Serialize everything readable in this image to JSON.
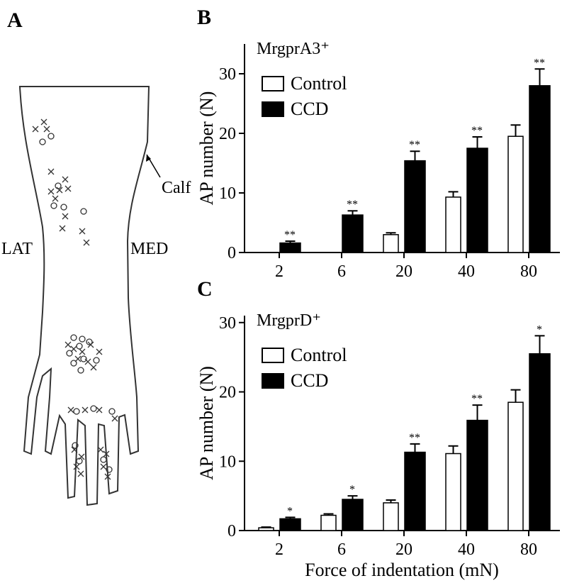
{
  "diagram": {
    "panel": "A",
    "labels": [
      "Calf",
      "LAT",
      "MED"
    ]
  },
  "chart_data": [
    {
      "type": "bar",
      "panel": "B",
      "title": "MrgprA3⁺",
      "ylabel": "AP number (N)",
      "categories": [
        "2",
        "6",
        "20",
        "40",
        "80"
      ],
      "series": [
        {
          "name": "Control",
          "color": "#ffffff",
          "values": [
            0,
            0,
            3.0,
            9.3,
            19.5
          ],
          "errors": [
            0,
            0,
            0.3,
            0.9,
            1.9
          ]
        },
        {
          "name": "CCD",
          "color": "#000000",
          "values": [
            1.6,
            6.3,
            15.4,
            17.5,
            28.0
          ],
          "errors": [
            0.3,
            0.7,
            1.6,
            1.9,
            2.8
          ]
        }
      ],
      "annotations": [
        "**",
        "**",
        "**",
        "**",
        "**"
      ],
      "ylim": [
        0,
        35
      ],
      "yticks": [
        0,
        10,
        20,
        30
      ],
      "legend": "upper left",
      "grid": false
    },
    {
      "type": "bar",
      "panel": "C",
      "title": "MrgprD⁺",
      "ylabel": "AP number (N)",
      "xlabel": "Force of indentation (mN)",
      "categories": [
        "2",
        "6",
        "20",
        "40",
        "80"
      ],
      "series": [
        {
          "name": "Control",
          "color": "#ffffff",
          "values": [
            0.4,
            2.2,
            4.0,
            11.1,
            18.5
          ],
          "errors": [
            0.1,
            0.2,
            0.4,
            1.1,
            1.8
          ]
        },
        {
          "name": "CCD",
          "color": "#000000",
          "values": [
            1.7,
            4.5,
            11.3,
            15.9,
            25.5
          ],
          "errors": [
            0.2,
            0.5,
            1.2,
            2.2,
            2.6
          ]
        }
      ],
      "annotations": [
        "*",
        "*",
        "**",
        "**",
        "*"
      ],
      "ylim": [
        0,
        31
      ],
      "yticks": [
        0,
        10,
        20,
        30
      ],
      "legend": "upper left",
      "grid": false
    }
  ]
}
